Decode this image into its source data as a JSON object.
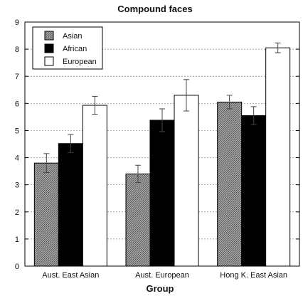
{
  "chart_data": {
    "type": "bar",
    "title": "Compound faces",
    "xlabel": "Group",
    "ylabel": "",
    "ylim": [
      0,
      9
    ],
    "yticks": [
      0,
      1,
      2,
      3,
      4,
      5,
      6,
      7,
      8,
      9
    ],
    "grid": "horizontal dashed",
    "legend_position": "top-left",
    "categories": [
      "Aust. East Asian",
      "Aust. European",
      "Hong K. East Asian"
    ],
    "series": [
      {
        "name": "Asian",
        "values": [
          3.8,
          3.4,
          6.05
        ],
        "errors": [
          0.35,
          0.32,
          0.25
        ],
        "fill": "hatched-gray"
      },
      {
        "name": "African",
        "values": [
          4.52,
          5.38,
          5.55
        ],
        "errors": [
          0.33,
          0.42,
          0.33
        ],
        "fill": "#000000"
      },
      {
        "name": "European",
        "values": [
          5.93,
          6.3,
          8.05
        ],
        "errors": [
          0.33,
          0.58,
          0.18
        ],
        "fill": "#ffffff"
      }
    ]
  },
  "colors": {
    "asian_fill": "#8c8c8c",
    "african_fill": "#000000",
    "european_fill": "#ffffff",
    "axis": "#000000",
    "grid": "#888888"
  }
}
